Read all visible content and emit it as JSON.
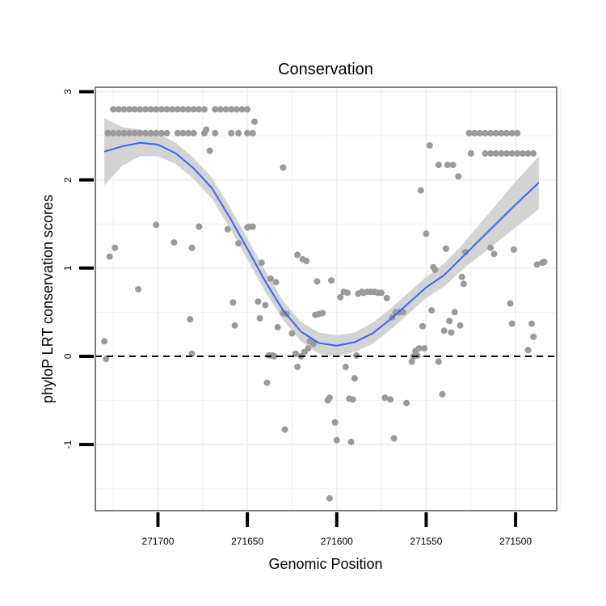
{
  "chart_data": {
    "type": "scatter",
    "title": "Conservation",
    "xlabel": "Genomic Position",
    "ylabel": "phyloP LRT conservation scores",
    "x_reversed": true,
    "xlim": [
      271735,
      271477
    ],
    "ylim": [
      -1.75,
      3.05
    ],
    "x_ticks": [
      271700,
      271650,
      271600,
      271550,
      271500
    ],
    "y_ticks": [
      -1,
      0,
      1,
      2,
      3
    ],
    "reference_line_y": 0,
    "grid": true,
    "colors": {
      "points": "#9a9a9a",
      "smooth_line": "#3366ff",
      "confidence_band": "#d3d3d3",
      "panel_border": "#7f7f7f",
      "grid": "#f0f0f0",
      "reference_line": "#000000"
    },
    "series": [
      {
        "type": "scatter",
        "points": [
          [
            271725,
            2.8
          ],
          [
            271722,
            2.8
          ],
          [
            271719,
            2.8
          ],
          [
            271716,
            2.8
          ],
          [
            271713,
            2.8
          ],
          [
            271710,
            2.8
          ],
          [
            271707,
            2.8
          ],
          [
            271704,
            2.8
          ],
          [
            271701,
            2.8
          ],
          [
            271698,
            2.8
          ],
          [
            271695,
            2.8
          ],
          [
            271692,
            2.8
          ],
          [
            271689,
            2.8
          ],
          [
            271686,
            2.8
          ],
          [
            271683,
            2.8
          ],
          [
            271680,
            2.8
          ],
          [
            271677,
            2.8
          ],
          [
            271674,
            2.8
          ],
          [
            271668,
            2.8
          ],
          [
            271665,
            2.8
          ],
          [
            271662,
            2.8
          ],
          [
            271659,
            2.8
          ],
          [
            271656,
            2.8
          ],
          [
            271653,
            2.8
          ],
          [
            271650,
            2.8
          ],
          [
            271728,
            2.53
          ],
          [
            271725,
            2.53
          ],
          [
            271722,
            2.53
          ],
          [
            271719,
            2.53
          ],
          [
            271716,
            2.53
          ],
          [
            271713,
            2.53
          ],
          [
            271710,
            2.53
          ],
          [
            271707,
            2.53
          ],
          [
            271704,
            2.53
          ],
          [
            271701,
            2.53
          ],
          [
            271698,
            2.53
          ],
          [
            271695,
            2.53
          ],
          [
            271689,
            2.53
          ],
          [
            271686,
            2.53
          ],
          [
            271683,
            2.53
          ],
          [
            271680,
            2.53
          ],
          [
            271674,
            2.53
          ],
          [
            271668,
            2.53
          ],
          [
            271659,
            2.53
          ],
          [
            271655,
            2.53
          ],
          [
            271650,
            2.53
          ],
          [
            271647,
            2.53
          ],
          [
            271673,
            2.57
          ],
          [
            271671,
            2.33
          ],
          [
            271646,
            2.66
          ],
          [
            271630,
            2.14
          ],
          [
            271619,
            1.1
          ],
          [
            271622,
            1.15
          ],
          [
            271617,
            1.08
          ],
          [
            271611,
            0.85
          ],
          [
            271730,
            0.17
          ],
          [
            271729,
            -0.03
          ],
          [
            271727,
            1.13
          ],
          [
            271724,
            1.23
          ],
          [
            271711,
            0.76
          ],
          [
            271701,
            1.49
          ],
          [
            271691,
            1.29
          ],
          [
            271682,
            0.42
          ],
          [
            271681,
            0.03
          ],
          [
            271681,
            1.23
          ],
          [
            271677,
            1.47
          ],
          [
            271661,
            1.44
          ],
          [
            271658,
            0.61
          ],
          [
            271657,
            0.35
          ],
          [
            271655,
            1.28
          ],
          [
            271650,
            1.46
          ],
          [
            271649,
            1.47
          ],
          [
            271647,
            1.47
          ],
          [
            271644,
            0.62
          ],
          [
            271643,
            0.43
          ],
          [
            271642,
            1.06
          ],
          [
            271640,
            0.58
          ],
          [
            271638,
            0.01
          ],
          [
            271636,
            0.01
          ],
          [
            271635,
            0.0
          ],
          [
            271637,
            0.88
          ],
          [
            271634,
            0.84
          ],
          [
            271633,
            0.33
          ],
          [
            271639,
            -0.3
          ],
          [
            271630,
            0.49
          ],
          [
            271628,
            0.48
          ],
          [
            271625,
            0.26
          ],
          [
            271623,
            0.03
          ],
          [
            271622,
            -0.12
          ],
          [
            271620,
            0.0
          ],
          [
            271618,
            0.05
          ],
          [
            271616,
            0.09
          ],
          [
            271615,
            0.17
          ],
          [
            271613,
            0.14
          ],
          [
            271612,
            0.47
          ],
          [
            271610,
            0.48
          ],
          [
            271608,
            0.49
          ],
          [
            271629,
            -0.83
          ],
          [
            271605,
            -0.5
          ],
          [
            271604,
            -0.47
          ],
          [
            271603,
            0.86
          ],
          [
            271601,
            -0.75
          ],
          [
            271600,
            -0.95
          ],
          [
            271598,
            0.67
          ],
          [
            271596,
            0.73
          ],
          [
            271594,
            0.72
          ],
          [
            271593,
            -0.48
          ],
          [
            271591,
            -0.49
          ],
          [
            271590,
            -0.25
          ],
          [
            271589,
            0.01
          ],
          [
            271588,
            0.71
          ],
          [
            271586,
            0.73
          ],
          [
            271585,
            0.72
          ],
          [
            271583,
            0.73
          ],
          [
            271581,
            0.73
          ],
          [
            271579,
            0.73
          ],
          [
            271577,
            0.72
          ],
          [
            271575,
            0.72
          ],
          [
            271573,
            -0.47
          ],
          [
            271572,
            0.66
          ],
          [
            271570,
            -0.49
          ],
          [
            271568,
            -0.93
          ],
          [
            271567,
            0.5
          ],
          [
            271565,
            0.5
          ],
          [
            271563,
            0.5
          ],
          [
            271561,
            -0.53
          ],
          [
            271558,
            -0.06
          ],
          [
            271557,
            0.0
          ],
          [
            271555,
            0.01
          ],
          [
            271604,
            -1.61
          ],
          [
            271592,
            -0.97
          ],
          [
            271595,
            -0.12
          ],
          [
            271569,
            0.44
          ],
          [
            271553,
            1.88
          ],
          [
            271550,
            1.39
          ],
          [
            271548,
            2.39
          ],
          [
            271546,
            1.01
          ],
          [
            271545,
            0.98
          ],
          [
            271543,
            -0.06
          ],
          [
            271541,
            -0.43
          ],
          [
            271540,
            0.29
          ],
          [
            271552,
            0.34
          ],
          [
            271551,
            0.09
          ],
          [
            271547,
            0.52
          ],
          [
            271539,
            1.22
          ],
          [
            271537,
            0.4
          ],
          [
            271536,
            0.27
          ],
          [
            271534,
            0.5
          ],
          [
            271532,
            2.04
          ],
          [
            271531,
            0.35
          ],
          [
            271530,
            0.9
          ],
          [
            271529,
            0.82
          ],
          [
            271528,
            1.18
          ],
          [
            271525,
            2.3
          ],
          [
            271517,
            2.3
          ],
          [
            271514,
            1.23
          ],
          [
            271512,
            1.16
          ],
          [
            271508,
            2.3
          ],
          [
            271503,
            0.6
          ],
          [
            271502,
            0.37
          ],
          [
            271501,
            1.21
          ],
          [
            271493,
            0.07
          ],
          [
            271491,
            0.37
          ],
          [
            271490,
            0.22
          ],
          [
            271488,
            1.04
          ],
          [
            271485,
            1.06
          ],
          [
            271484,
            1.07
          ],
          [
            271543,
            2.17
          ],
          [
            271538,
            2.17
          ],
          [
            271535,
            2.17
          ],
          [
            271556,
            0.06
          ],
          [
            271554,
            0.09
          ],
          [
            271526,
            2.53
          ],
          [
            271523,
            2.53
          ],
          [
            271520,
            2.53
          ],
          [
            271517,
            2.53
          ],
          [
            271514,
            2.53
          ],
          [
            271511,
            2.53
          ],
          [
            271508,
            2.53
          ],
          [
            271505,
            2.53
          ],
          [
            271502,
            2.53
          ],
          [
            271499,
            2.53
          ],
          [
            271514,
            2.3
          ],
          [
            271511,
            2.3
          ],
          [
            271505,
            2.3
          ],
          [
            271502,
            2.3
          ],
          [
            271499,
            2.3
          ],
          [
            271496,
            2.3
          ],
          [
            271493,
            2.3
          ],
          [
            271490,
            2.3
          ]
        ]
      },
      {
        "type": "line",
        "name": "",
        "points": [
          [
            271730,
            2.32
          ],
          [
            271720,
            2.38
          ],
          [
            271710,
            2.42
          ],
          [
            271700,
            2.4
          ],
          [
            271690,
            2.3
          ],
          [
            271680,
            2.13
          ],
          [
            271670,
            1.91
          ],
          [
            271660,
            1.58
          ],
          [
            271650,
            1.22
          ],
          [
            271640,
            0.85
          ],
          [
            271630,
            0.52
          ],
          [
            271620,
            0.28
          ],
          [
            271610,
            0.15
          ],
          [
            271600,
            0.12
          ],
          [
            271590,
            0.16
          ],
          [
            271580,
            0.26
          ],
          [
            271570,
            0.42
          ],
          [
            271560,
            0.6
          ],
          [
            271550,
            0.78
          ],
          [
            271540,
            0.92
          ],
          [
            271530,
            1.12
          ],
          [
            271520,
            1.32
          ],
          [
            271510,
            1.52
          ],
          [
            271500,
            1.72
          ],
          [
            271490,
            1.91
          ],
          [
            271487,
            1.97
          ]
        ],
        "band_upper": [
          [
            271730,
            2.7
          ],
          [
            271720,
            2.6
          ],
          [
            271710,
            2.57
          ],
          [
            271700,
            2.53
          ],
          [
            271690,
            2.42
          ],
          [
            271680,
            2.25
          ],
          [
            271670,
            2.03
          ],
          [
            271660,
            1.7
          ],
          [
            271650,
            1.34
          ],
          [
            271640,
            0.97
          ],
          [
            271630,
            0.63
          ],
          [
            271620,
            0.39
          ],
          [
            271610,
            0.27
          ],
          [
            271600,
            0.24
          ],
          [
            271590,
            0.27
          ],
          [
            271580,
            0.38
          ],
          [
            271570,
            0.54
          ],
          [
            271560,
            0.72
          ],
          [
            271550,
            0.9
          ],
          [
            271540,
            1.05
          ],
          [
            271530,
            1.26
          ],
          [
            271520,
            1.5
          ],
          [
            271510,
            1.74
          ],
          [
            271500,
            1.98
          ],
          [
            271490,
            2.2
          ],
          [
            271487,
            2.27
          ]
        ],
        "band_lower": [
          [
            271730,
            1.94
          ],
          [
            271720,
            2.16
          ],
          [
            271710,
            2.27
          ],
          [
            271700,
            2.27
          ],
          [
            271690,
            2.18
          ],
          [
            271680,
            2.01
          ],
          [
            271670,
            1.79
          ],
          [
            271660,
            1.46
          ],
          [
            271650,
            1.1
          ],
          [
            271640,
            0.73
          ],
          [
            271630,
            0.41
          ],
          [
            271620,
            0.17
          ],
          [
            271610,
            0.03
          ],
          [
            271600,
            0.0
          ],
          [
            271590,
            0.05
          ],
          [
            271580,
            0.14
          ],
          [
            271570,
            0.3
          ],
          [
            271560,
            0.48
          ],
          [
            271550,
            0.66
          ],
          [
            271540,
            0.79
          ],
          [
            271530,
            0.98
          ],
          [
            271520,
            1.14
          ],
          [
            271510,
            1.3
          ],
          [
            271500,
            1.46
          ],
          [
            271490,
            1.62
          ],
          [
            271487,
            1.67
          ]
        ]
      }
    ]
  }
}
